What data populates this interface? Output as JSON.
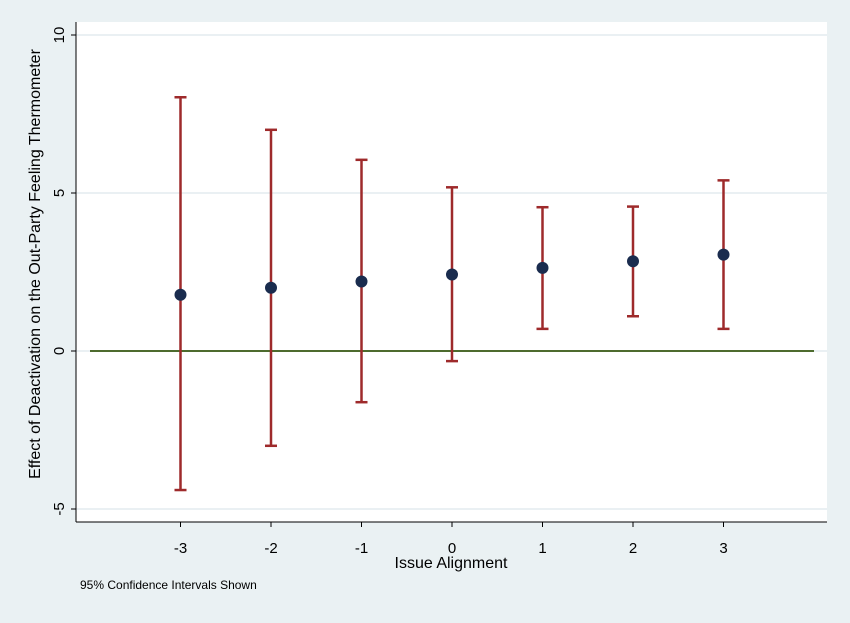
{
  "chart_data": {
    "type": "scatter",
    "subtype": "point-estimates-with-confidence-intervals",
    "title": "",
    "xlabel": "Issue Alignment",
    "ylabel": "Effect of Deactivation on the Out-Party Feeling Thermometer",
    "xlim": [
      -4,
      4
    ],
    "ylim": [
      -5.5,
      10.5
    ],
    "x_ticks": [
      -3,
      -2,
      -1,
      0,
      1,
      2,
      3
    ],
    "x_tick_labels": [
      "-3",
      "-2",
      "-1",
      "0",
      "1",
      "2",
      "3"
    ],
    "y_ticks": [
      -5,
      0,
      5,
      10
    ],
    "y_tick_labels": [
      "-5",
      "0",
      "5",
      "10"
    ],
    "grid": "horizontal",
    "reference_line": {
      "y": 0,
      "color": "#4d6b2e"
    },
    "series": [
      {
        "x": [
          -3,
          -2,
          -1,
          0,
          1,
          2,
          3
        ],
        "values": [
          1.78,
          2.0,
          2.2,
          2.42,
          2.63,
          2.84,
          3.05
        ],
        "ci_lower": [
          -4.4,
          -3.0,
          -1.62,
          -0.32,
          0.7,
          1.1,
          0.7
        ],
        "ci_upper": [
          8.03,
          7.0,
          6.05,
          5.18,
          4.55,
          4.57,
          5.4
        ],
        "point_color": "#1a2c4e",
        "ci_color": "#9e2a2b"
      }
    ],
    "note": "95% Confidence Intervals Shown"
  }
}
